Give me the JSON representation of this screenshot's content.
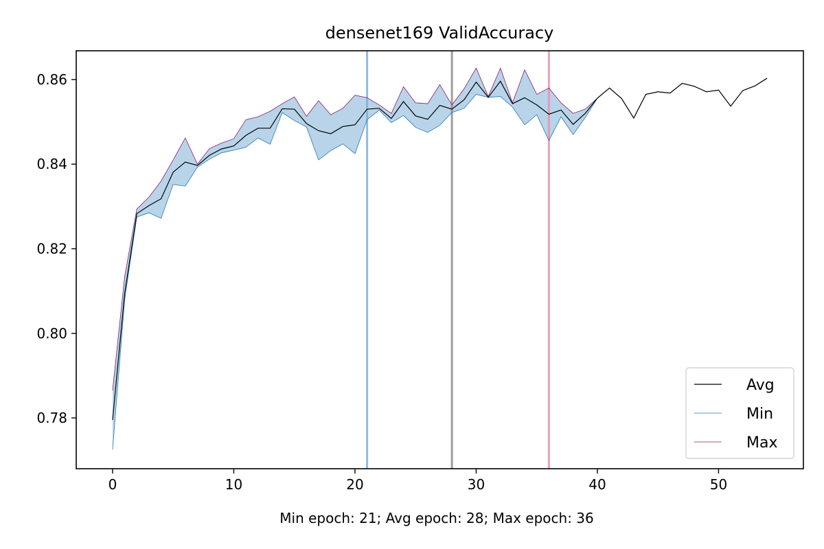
{
  "chart_data": {
    "type": "line",
    "title": "densenet169 ValidAccuracy",
    "xlabel": "Min epoch: 21; Avg epoch: 28; Max epoch: 36",
    "ylabel": "",
    "xlim": [
      -3,
      57
    ],
    "ylim": [
      0.768,
      0.8668
    ],
    "xticks": [
      0,
      10,
      20,
      30,
      40,
      50
    ],
    "yticks": [
      0.78,
      0.8,
      0.82,
      0.84,
      0.86
    ],
    "ytick_labels": [
      "0.78",
      "0.80",
      "0.82",
      "0.84",
      "0.86"
    ],
    "grid": false,
    "legend_position": "lower-right",
    "x": [
      0,
      1,
      2,
      3,
      4,
      5,
      6,
      7,
      8,
      9,
      10,
      11,
      12,
      13,
      14,
      15,
      16,
      17,
      18,
      19,
      20,
      21,
      22,
      23,
      24,
      25,
      26,
      27,
      28,
      29,
      30,
      31,
      32,
      33,
      34,
      35,
      36,
      37,
      38,
      39,
      40,
      41,
      42,
      43,
      44,
      45,
      46,
      47,
      48,
      49,
      50,
      51,
      52,
      53,
      54
    ],
    "series": [
      {
        "name": "Avg",
        "color": "#000000",
        "values": [
          0.7795,
          0.8095,
          0.8283,
          0.8302,
          0.8318,
          0.8381,
          0.8405,
          0.8397,
          0.8421,
          0.8436,
          0.8443,
          0.8468,
          0.8485,
          0.8485,
          0.8531,
          0.853,
          0.8496,
          0.8479,
          0.8472,
          0.8489,
          0.8493,
          0.853,
          0.8532,
          0.8508,
          0.8548,
          0.8514,
          0.8506,
          0.8539,
          0.853,
          0.8552,
          0.8594,
          0.8558,
          0.8596,
          0.8543,
          0.8557,
          0.854,
          0.8518,
          0.8528,
          0.8494,
          0.852,
          0.8556,
          0.858,
          0.8555,
          0.8509,
          0.8565,
          0.8571,
          0.8568,
          0.8591,
          0.8584,
          0.8571,
          0.8575,
          0.8537,
          0.8574,
          0.8585,
          0.8603
        ]
      },
      {
        "name": "Min",
        "color": "#1f77b4",
        "values": [
          0.7725,
          0.808,
          0.8275,
          0.8285,
          0.8272,
          0.8352,
          0.8348,
          0.8393,
          0.8412,
          0.8427,
          0.8433,
          0.844,
          0.8462,
          0.8447,
          0.8522,
          0.8503,
          0.8488,
          0.841,
          0.8432,
          0.8448,
          0.8425,
          0.8505,
          0.8528,
          0.8498,
          0.8515,
          0.8487,
          0.8475,
          0.8492,
          0.8522,
          0.8532,
          0.8565,
          0.8558,
          0.856,
          0.8535,
          0.8493,
          0.8517,
          0.8456,
          0.8512,
          0.847,
          0.851,
          0.8556,
          0.858,
          0.8555,
          0.8509,
          0.8565,
          0.8571,
          0.8568,
          0.8591,
          0.8584,
          0.8571,
          0.8575,
          0.8537,
          0.8574,
          0.8585,
          0.8603
        ]
      },
      {
        "name": "Max",
        "color": "#8b1a6b",
        "values": [
          0.7865,
          0.8135,
          0.8294,
          0.8322,
          0.836,
          0.841,
          0.8462,
          0.84,
          0.8437,
          0.845,
          0.846,
          0.8505,
          0.8512,
          0.8525,
          0.8543,
          0.8559,
          0.8513,
          0.855,
          0.8517,
          0.8532,
          0.8563,
          0.8557,
          0.854,
          0.852,
          0.8583,
          0.8545,
          0.8543,
          0.8588,
          0.854,
          0.8578,
          0.8627,
          0.856,
          0.8627,
          0.8545,
          0.8623,
          0.8565,
          0.858,
          0.8545,
          0.852,
          0.853,
          0.8556,
          0.858,
          0.8555,
          0.8509,
          0.8565,
          0.8571,
          0.8568,
          0.8591,
          0.8584,
          0.8571,
          0.8575,
          0.8537,
          0.8574,
          0.8585,
          0.8603
        ]
      }
    ],
    "vlines": [
      {
        "x": 21,
        "color": "#7fb0d6",
        "name": "Min"
      },
      {
        "x": 28,
        "color": "#8c8c8c",
        "name": "Avg"
      },
      {
        "x": 36,
        "color": "#e88fb0",
        "name": "Max"
      }
    ],
    "fill_color": "#7fb0d6"
  }
}
